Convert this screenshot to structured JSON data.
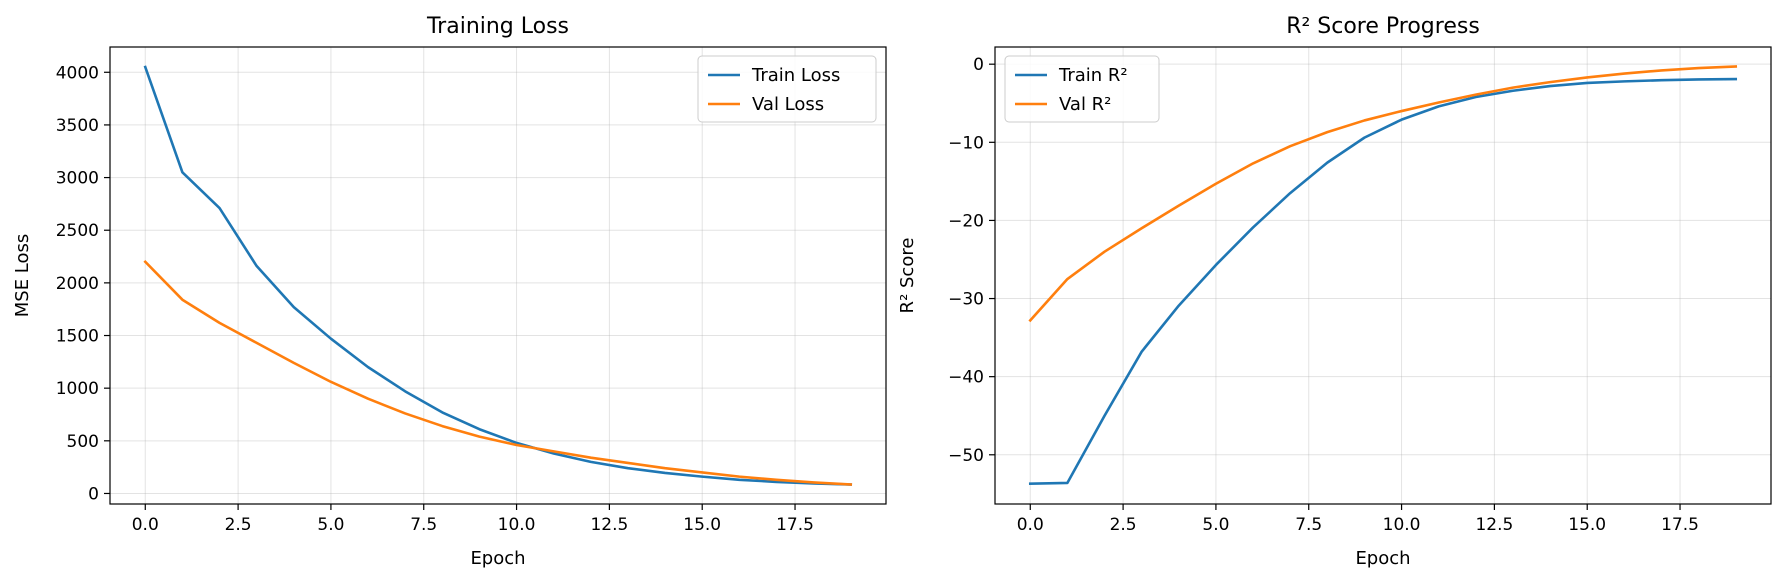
{
  "chart_data": [
    {
      "type": "line",
      "title": "Training Loss",
      "xlabel": "Epoch",
      "ylabel": "MSE Loss",
      "xlim": [
        -0.95,
        19.95
      ],
      "ylim": [
        -100,
        4240
      ],
      "xticks": [
        0.0,
        2.5,
        5.0,
        7.5,
        10.0,
        12.5,
        15.0,
        17.5
      ],
      "xtick_labels": [
        "0.0",
        "2.5",
        "5.0",
        "7.5",
        "10.0",
        "12.5",
        "15.0",
        "17.5"
      ],
      "yticks": [
        0,
        500,
        1000,
        1500,
        2000,
        2500,
        3000,
        3500,
        4000
      ],
      "ytick_labels": [
        "0",
        "500",
        "1000",
        "1500",
        "2000",
        "2500",
        "3000",
        "3500",
        "4000"
      ],
      "grid": true,
      "legend_position": "top-right",
      "x": [
        0,
        1,
        2,
        3,
        4,
        5,
        6,
        7,
        8,
        9,
        10,
        11,
        12,
        13,
        14,
        15,
        16,
        17,
        18,
        19
      ],
      "series": [
        {
          "name": "Train Loss",
          "color": "#1f77b4",
          "values": [
            4050,
            3050,
            2710,
            2160,
            1770,
            1470,
            1200,
            970,
            770,
            610,
            480,
            380,
            300,
            240,
            195,
            160,
            130,
            110,
            95,
            85
          ]
        },
        {
          "name": "Val Loss",
          "color": "#ff7f0e",
          "values": [
            2200,
            1840,
            1620,
            1430,
            1240,
            1060,
            900,
            760,
            640,
            540,
            460,
            400,
            340,
            290,
            240,
            200,
            160,
            130,
            105,
            85
          ]
        }
      ]
    },
    {
      "type": "line",
      "title": "R² Score Progress",
      "xlabel": "Epoch",
      "ylabel": "R² Score",
      "xlim": [
        -0.95,
        19.95
      ],
      "ylim": [
        -56.3,
        2.2
      ],
      "xticks": [
        0.0,
        2.5,
        5.0,
        7.5,
        10.0,
        12.5,
        15.0,
        17.5
      ],
      "xtick_labels": [
        "0.0",
        "2.5",
        "5.0",
        "7.5",
        "10.0",
        "12.5",
        "15.0",
        "17.5"
      ],
      "yticks": [
        -50,
        -40,
        -30,
        -20,
        -10,
        0
      ],
      "ytick_labels": [
        "−50",
        "−40",
        "−30",
        "−20",
        "−10",
        "0"
      ],
      "grid": true,
      "legend_position": "top-left",
      "x": [
        0,
        1,
        2,
        3,
        4,
        5,
        6,
        7,
        8,
        9,
        10,
        11,
        12,
        13,
        14,
        15,
        16,
        17,
        18,
        19
      ],
      "series": [
        {
          "name": "Train R²",
          "color": "#1f77b4",
          "values": [
            -53.7,
            -53.6,
            -45.0,
            -36.8,
            -30.9,
            -25.7,
            -20.9,
            -16.5,
            -12.6,
            -9.4,
            -7.1,
            -5.4,
            -4.2,
            -3.4,
            -2.8,
            -2.4,
            -2.2,
            -2.05,
            -1.95,
            -1.9
          ]
        },
        {
          "name": "Val R²",
          "color": "#ff7f0e",
          "values": [
            -32.8,
            -27.5,
            -24.0,
            -21.0,
            -18.1,
            -15.3,
            -12.7,
            -10.5,
            -8.7,
            -7.2,
            -6.0,
            -4.9,
            -3.9,
            -3.0,
            -2.3,
            -1.7,
            -1.2,
            -0.8,
            -0.5,
            -0.3
          ]
        }
      ]
    }
  ]
}
